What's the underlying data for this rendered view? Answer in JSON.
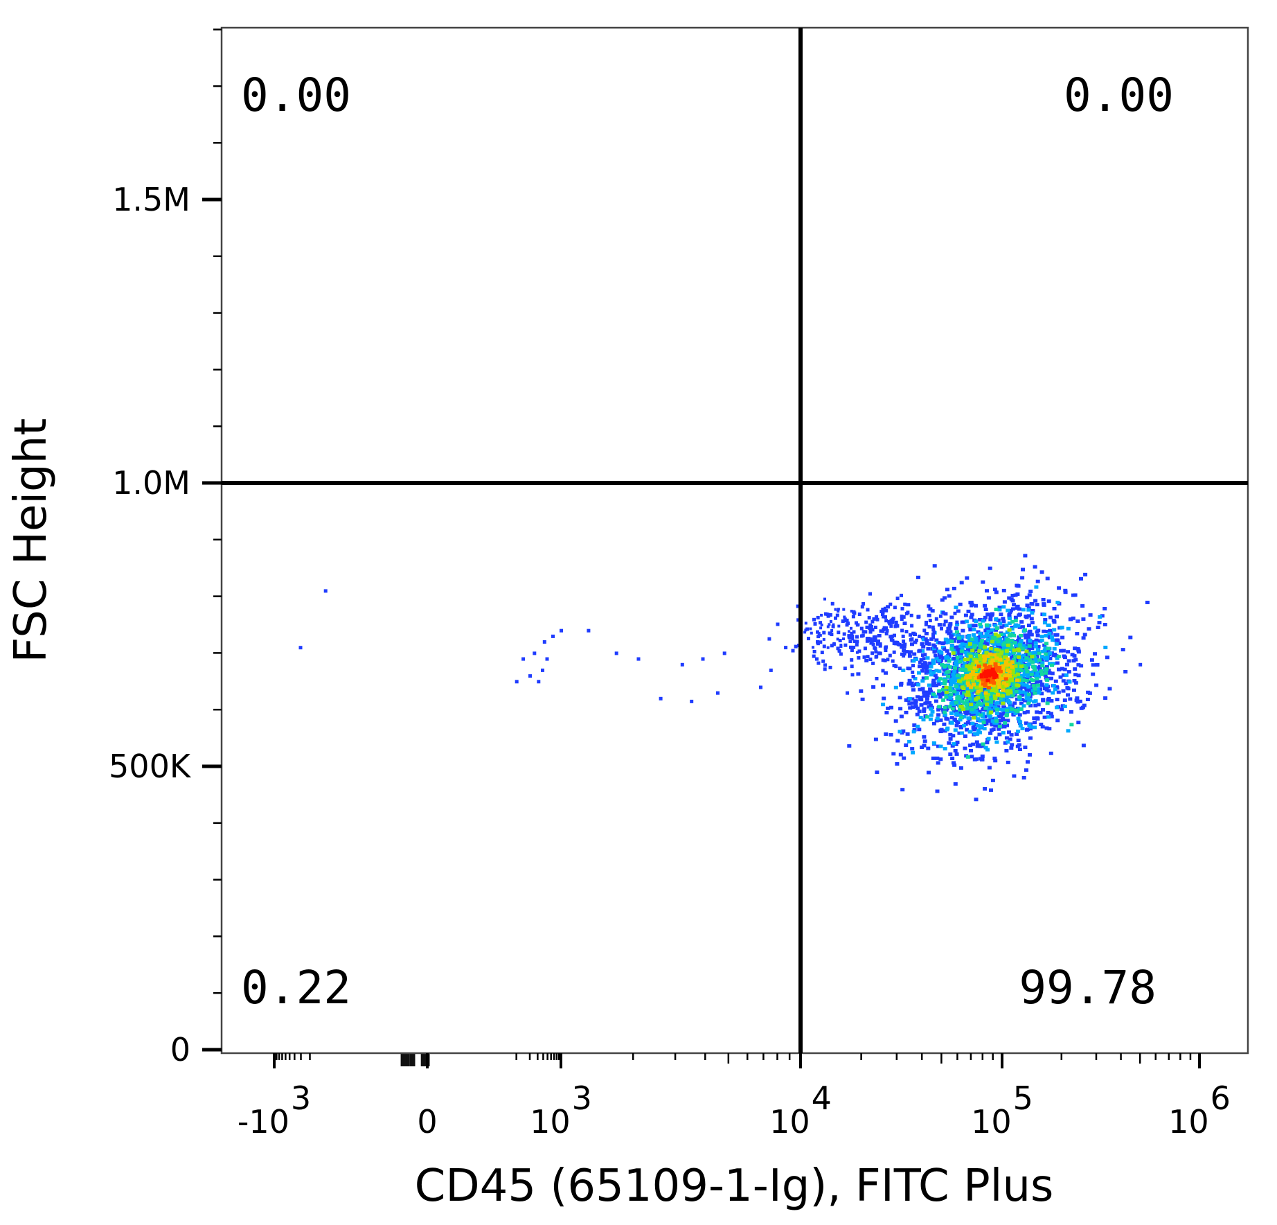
{
  "chart_data": {
    "type": "scatter",
    "subtype": "flow-cytometry density dot plot with quadrant gate",
    "xlabel": "CD45 (65109-1-Ig), FITC Plus",
    "ylabel": "FSC Height",
    "x_scale": "biexponential",
    "x_ticks": [
      {
        "value": -1000,
        "base": "-10",
        "exp": "3"
      },
      {
        "value": 0,
        "base": "0",
        "exp": ""
      },
      {
        "value": 1000,
        "base": "10",
        "exp": "3"
      },
      {
        "value": 10000,
        "base": "10",
        "exp": "4"
      },
      {
        "value": 100000,
        "base": "10",
        "exp": "5"
      },
      {
        "value": 1000000,
        "base": "10",
        "exp": "6"
      }
    ],
    "y_scale": "linear",
    "ylim": [
      0,
      1800000
    ],
    "y_ticks": [
      {
        "value": 0,
        "label": "0"
      },
      {
        "value": 500000,
        "label": "500K"
      },
      {
        "value": 1000000,
        "label": "1.0M"
      },
      {
        "value": 1500000,
        "label": "1.5M"
      }
    ],
    "gate": {
      "x": 10000,
      "y": 1000000
    },
    "quadrants": [
      {
        "position": "upper-left",
        "label": "0.00"
      },
      {
        "position": "upper-right",
        "label": "0.00"
      },
      {
        "position": "lower-left",
        "label": "0.22"
      },
      {
        "position": "lower-right",
        "label": "99.78"
      }
    ],
    "population": {
      "center_x": 85000,
      "center_y": 665000,
      "x_range": [
        3000,
        600000
      ],
      "y_range": [
        540000,
        800000
      ],
      "density_colors": [
        "#1f3cff",
        "#00a8ff",
        "#12d6a0",
        "#9be40a",
        "#f5c400",
        "#ff5a00",
        "#ff1000"
      ]
    },
    "sparse_events": [
      [
        -310,
        710000
      ],
      [
        -100,
        810000
      ],
      [
        100,
        650000
      ],
      [
        140,
        690000
      ],
      [
        200,
        660000
      ],
      [
        250,
        700000
      ],
      [
        310,
        650000
      ],
      [
        380,
        670000
      ],
      [
        420,
        720000
      ],
      [
        480,
        690000
      ],
      [
        650,
        730000
      ],
      [
        1000,
        740000
      ],
      [
        1300,
        740000
      ],
      [
        1700,
        700000
      ],
      [
        2100,
        690000
      ],
      [
        2600,
        620000
      ],
      [
        3200,
        680000
      ],
      [
        3500,
        615000
      ],
      [
        3900,
        690000
      ],
      [
        4500,
        630000
      ],
      [
        4800,
        700000
      ],
      [
        6800,
        640000
      ],
      [
        7500,
        670000
      ],
      [
        12000,
        690000
      ],
      [
        14000,
        675000
      ],
      [
        17000,
        630000
      ],
      [
        500000,
        680000
      ]
    ]
  }
}
